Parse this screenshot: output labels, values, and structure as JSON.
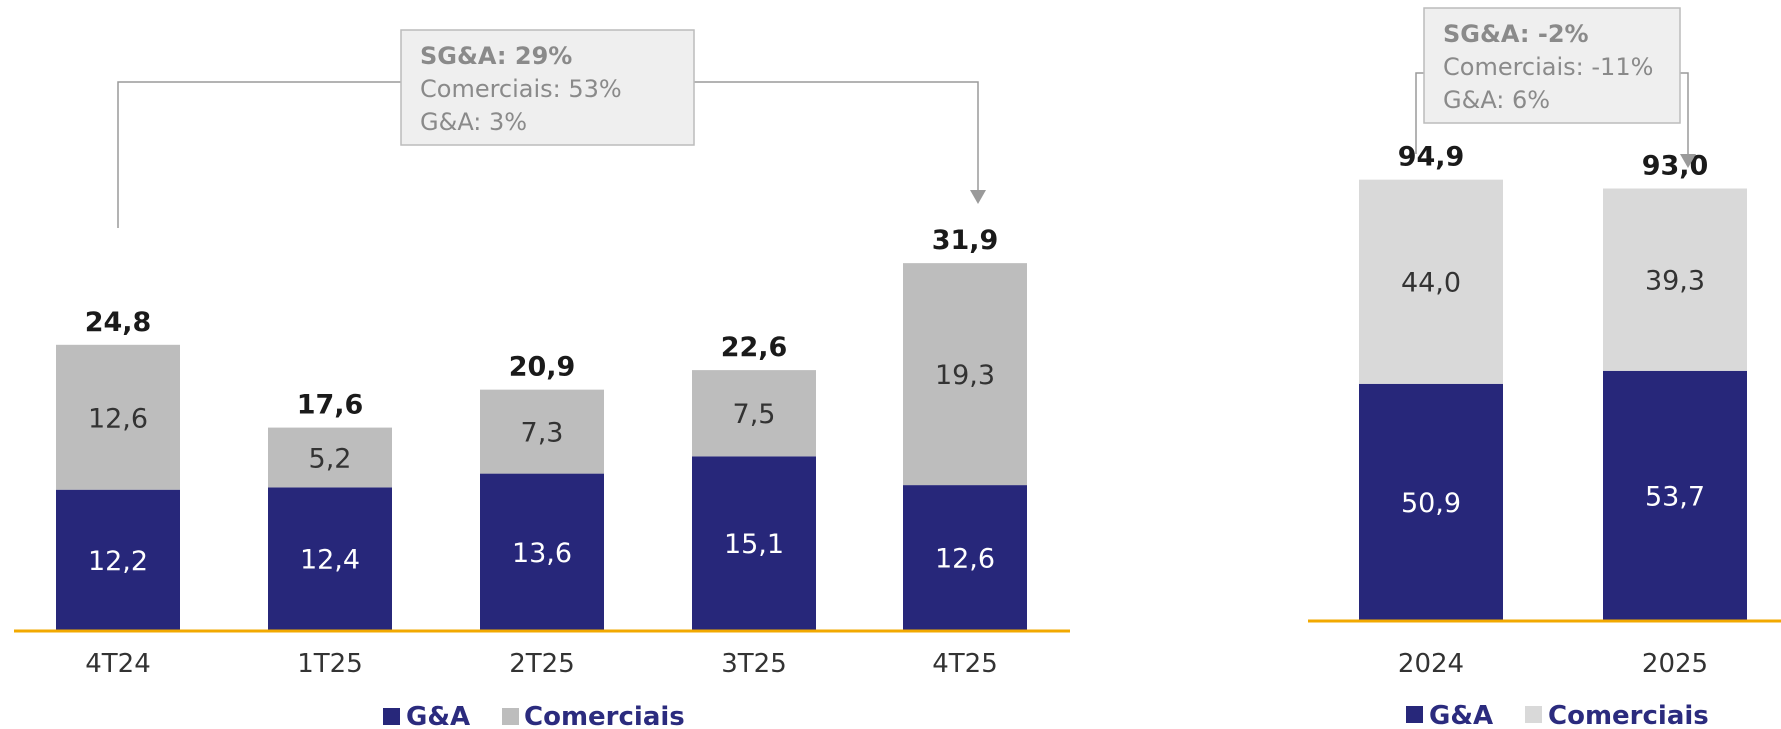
{
  "colors": {
    "ga": "#27277a",
    "comerciais_left": "#bdbdbd",
    "comerciais_right": "#d9d9d9",
    "baseline": "#f2a900",
    "box_fill": "#efefef",
    "box_border": "#bcbcbc",
    "connector": "#9a9a9a"
  },
  "legend": {
    "ga": "G&A",
    "comerciais": "Comerciais"
  },
  "chart_data": [
    {
      "type": "bar",
      "stacked": true,
      "categories": [
        "4T24",
        "1T25",
        "2T25",
        "3T25",
        "4T25"
      ],
      "series": [
        {
          "name": "G&A",
          "values": [
            12.2,
            12.4,
            13.6,
            15.1,
            12.6
          ],
          "labels": [
            "12,2",
            "12,4",
            "13,6",
            "15,1",
            "12,6"
          ]
        },
        {
          "name": "Comerciais",
          "values": [
            12.6,
            5.2,
            7.3,
            7.5,
            19.3
          ],
          "labels": [
            "12,6",
            "5,2",
            "7,3",
            "7,5",
            "19,3"
          ]
        }
      ],
      "totals": [
        "24,8",
        "17,6",
        "20,9",
        "22,6",
        "31,9"
      ],
      "annotation": {
        "title": "SG&A: 29%",
        "lines": [
          "Comerciais: 53%",
          "G&A: 3%"
        ]
      }
    },
    {
      "type": "bar",
      "stacked": true,
      "categories": [
        "2024",
        "2025"
      ],
      "series": [
        {
          "name": "G&A",
          "values": [
            50.9,
            53.7
          ],
          "labels": [
            "50,9",
            "53,7"
          ]
        },
        {
          "name": "Comerciais",
          "values": [
            44.0,
            39.3
          ],
          "labels": [
            "44,0",
            "39,3"
          ]
        }
      ],
      "totals": [
        "94,9",
        "93,0"
      ],
      "annotation": {
        "title": "SG&A: -2%",
        "lines": [
          "Comerciais: -11%",
          "G&A: 6%"
        ]
      }
    }
  ]
}
